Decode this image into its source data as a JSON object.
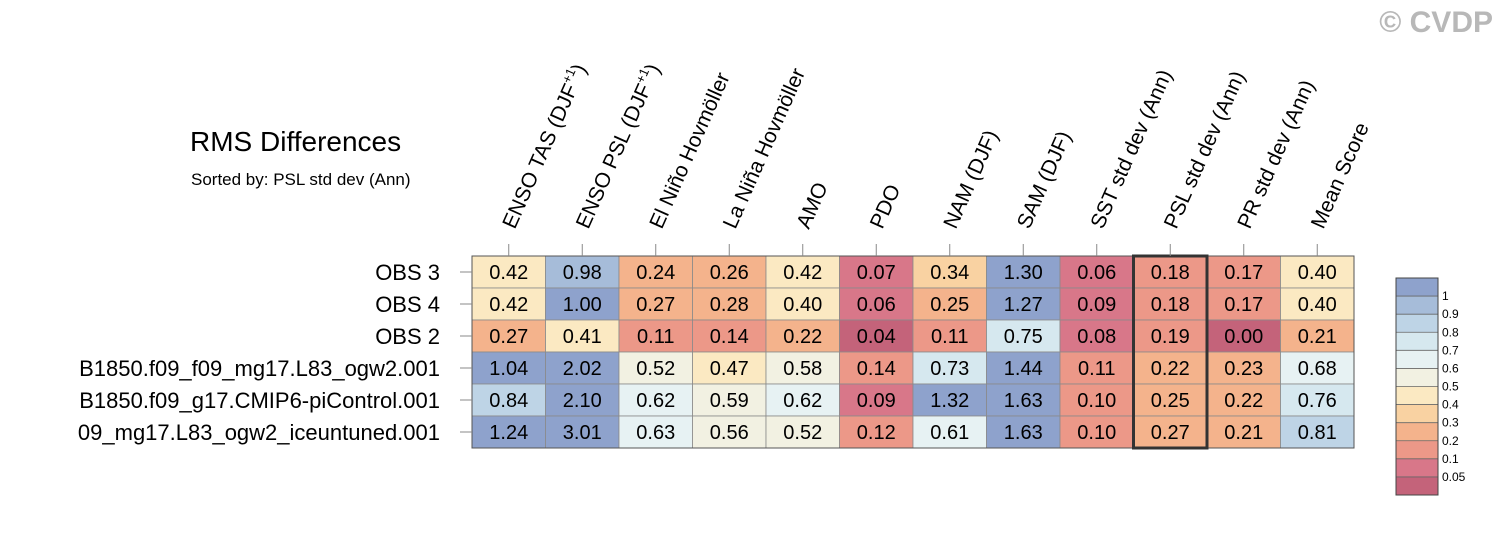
{
  "header": {
    "title": "RMS Differences",
    "subtitle": "Sorted by: PSL std dev (Ann)",
    "credit": "© CVDP"
  },
  "chart_data": {
    "type": "heatmap",
    "columns": [
      "ENSO TAS (DJF+1)",
      "ENSO PSL (DJF+1)",
      "El Niño Hovmöller",
      "La Niña Hovmöller",
      "AMO",
      "PDO",
      "NAM (DJF)",
      "SAM (DJF)",
      "SST std dev (Ann)",
      "PSL std dev (Ann)",
      "PR std dev (Ann)",
      "Mean Score"
    ],
    "rows": [
      "OBS 3",
      "OBS 4",
      "OBS 2",
      "B1850.f09_f09_mg17.L83_ogw2.001",
      "B1850.f09_g17.CMIP6-piControl.001",
      "09_mg17.L83_ogw2_iceuntuned.001"
    ],
    "values": [
      [
        0.42,
        0.98,
        0.24,
        0.26,
        0.42,
        0.07,
        0.34,
        1.3,
        0.06,
        0.18,
        0.17,
        0.4
      ],
      [
        0.42,
        1.0,
        0.27,
        0.28,
        0.4,
        0.06,
        0.25,
        1.27,
        0.09,
        0.18,
        0.17,
        0.4
      ],
      [
        0.27,
        0.41,
        0.11,
        0.14,
        0.22,
        0.04,
        0.11,
        0.75,
        0.08,
        0.19,
        0.0,
        0.21
      ],
      [
        1.04,
        2.02,
        0.52,
        0.47,
        0.58,
        0.14,
        0.73,
        1.44,
        0.11,
        0.22,
        0.23,
        0.68
      ],
      [
        0.84,
        2.1,
        0.62,
        0.59,
        0.62,
        0.09,
        1.32,
        1.63,
        0.1,
        0.25,
        0.22,
        0.76
      ],
      [
        1.24,
        3.01,
        0.63,
        0.56,
        0.52,
        0.12,
        0.61,
        1.63,
        0.1,
        0.27,
        0.21,
        0.81
      ]
    ],
    "sorted_by": "PSL std dev (Ann)",
    "highlight_column": 9,
    "colorbar": {
      "labels": [
        "1",
        "0.9",
        "0.8",
        "0.7",
        "0.6",
        "0.5",
        "0.4",
        "0.3",
        "0.2",
        "0.1",
        "0.05"
      ],
      "colors": [
        "#8ea2cc",
        "#a6bcd9",
        "#bed4e6",
        "#d6e8ef",
        "#e7f2f3",
        "#f2f1e2",
        "#fbe9c2",
        "#f9d2a2",
        "#f4b38c",
        "#ec9888",
        "#d87789",
        "#c4637a"
      ]
    }
  }
}
